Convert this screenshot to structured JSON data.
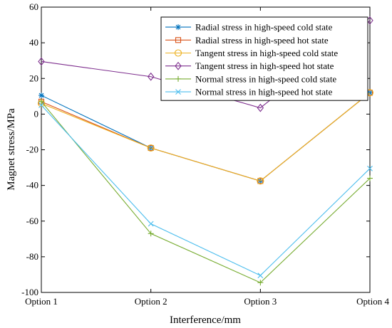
{
  "chart_data": {
    "type": "line",
    "categories": [
      "Option 1",
      "Option 2",
      "Option 3",
      "Option 4"
    ],
    "xlabel": "Interference/mm",
    "ylabel": "Magnet stress/MPa",
    "ylim": [
      -100,
      60
    ],
    "yticks": [
      -100,
      -80,
      -60,
      -40,
      -20,
      0,
      20,
      40,
      60
    ],
    "grid": false,
    "legend_position": "top-right",
    "series": [
      {
        "name": "Radial stress in high-speed cold state",
        "values": [
          10.5,
          -19,
          -37.5,
          12
        ],
        "color": "#0072BD",
        "marker": "asterisk"
      },
      {
        "name": "Radial stress in high-speed hot state",
        "values": [
          7,
          -19,
          -37.5,
          12
        ],
        "color": "#D95319",
        "marker": "square"
      },
      {
        "name": "Tangent stress in high-speed cold state",
        "values": [
          6,
          -19,
          -37.5,
          12
        ],
        "color": "#EDB120",
        "marker": "circle"
      },
      {
        "name": "Tangent stress in high-speed hot state",
        "values": [
          29.5,
          21,
          3.5,
          52.5
        ],
        "color": "#7E2F8E",
        "marker": "diamond"
      },
      {
        "name": "Normal stress in high-speed cold state",
        "values": [
          7,
          -67,
          -94.5,
          -36
        ],
        "color": "#77AC30",
        "marker": "plus"
      },
      {
        "name": "Normal stress in high-speed hot state",
        "values": [
          5,
          -61.5,
          -90.5,
          -30.5
        ],
        "color": "#4DBEEE",
        "marker": "cross"
      }
    ]
  }
}
